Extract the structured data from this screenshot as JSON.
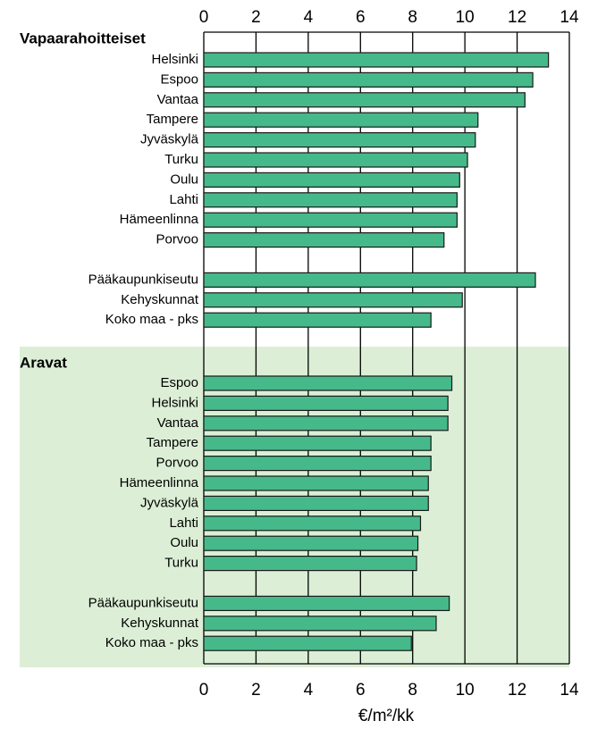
{
  "chart_data": {
    "type": "bar",
    "orientation": "horizontal",
    "color": "#45b98a",
    "x_label": "€/m²/kk",
    "xlim": [
      0,
      14
    ],
    "xticks": [
      0,
      2,
      4,
      6,
      8,
      10,
      12,
      14
    ],
    "grid": true,
    "groups": [
      {
        "name": "Vapaarahoitteiset",
        "categories": [
          "Helsinki",
          "Espoo",
          "Vantaa",
          "Tampere",
          "Jyväskylä",
          "Turku",
          "Oulu",
          "Lahti",
          "Hämeenlinna",
          "Porvoo",
          null,
          "Pääkaupunkiseutu",
          "Kehyskunnat",
          "Koko maa - pks"
        ],
        "values": [
          13.2,
          12.6,
          12.3,
          10.5,
          10.4,
          10.1,
          9.8,
          9.7,
          9.7,
          9.2,
          null,
          12.7,
          9.9,
          8.7
        ]
      },
      {
        "name": "Aravat",
        "categories": [
          "Espoo",
          "Helsinki",
          "Vantaa",
          "Tampere",
          "Porvoo",
          "Hämeenlinna",
          "Jyväskylä",
          "Lahti",
          "Oulu",
          "Turku",
          null,
          "Pääkaupunkiseutu",
          "Kehyskunnat",
          "Koko maa - pks"
        ],
        "values": [
          9.5,
          9.35,
          9.35,
          8.7,
          8.7,
          8.6,
          8.6,
          8.3,
          8.2,
          8.15,
          null,
          9.4,
          8.9,
          7.95
        ]
      }
    ]
  }
}
